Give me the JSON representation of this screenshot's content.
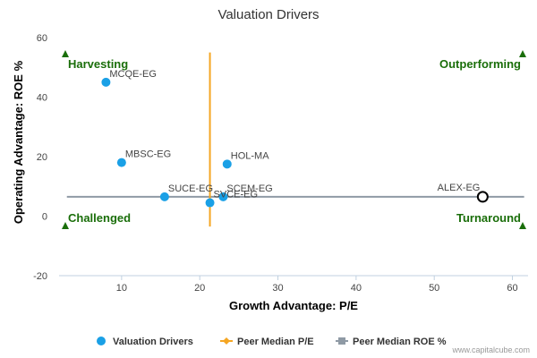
{
  "chart_data": {
    "type": "scatter",
    "title": "Valuation Drivers",
    "xlabel": "Growth Advantage: P/E",
    "ylabel": "Operating Advantage: ROE %",
    "xlim": [
      2,
      62
    ],
    "ylim": [
      -20,
      60
    ],
    "xticks": [
      10,
      20,
      30,
      40,
      50,
      60
    ],
    "yticks": [
      -20,
      0,
      20,
      40,
      60
    ],
    "grid": false,
    "legend_position": "bottom",
    "series": [
      {
        "name": "Valuation Drivers",
        "color": "#1aa0e6",
        "points": [
          {
            "label": "MCQE-EG",
            "x": 8,
            "y": 45
          },
          {
            "label": "MBSC-EG",
            "x": 10,
            "y": 18
          },
          {
            "label": "HOL-MA",
            "x": 23.5,
            "y": 17.5
          },
          {
            "label": "SUCE-EG",
            "x": 15.5,
            "y": 6.5
          },
          {
            "label": "SCEM-EG",
            "x": 23,
            "y": 6.5
          },
          {
            "label": "SVCE-EG",
            "x": 21.3,
            "y": 4.5
          }
        ]
      },
      {
        "name": "ALEX-EG",
        "color": "#000000",
        "marker": "hollow-circle",
        "points": [
          {
            "label": "ALEX-EG",
            "x": 56.2,
            "y": 6.5
          }
        ]
      }
    ],
    "reference_lines": {
      "peer_median_pe": {
        "name": "Peer Median P/E",
        "x": 21.3,
        "y_range": [
          -3.5,
          55
        ],
        "color": "#f5a623"
      },
      "peer_median_roe": {
        "name": "Peer Median ROE %",
        "y": 6.5,
        "x_range": [
          3,
          61.5
        ],
        "color": "#8f9aa5"
      }
    },
    "quadrants": [
      {
        "label": "Harvesting",
        "position": "top-left"
      },
      {
        "label": "Outperforming",
        "position": "top-right"
      },
      {
        "label": "Challenged",
        "position": "bottom-left"
      },
      {
        "label": "Turnaround",
        "position": "bottom-right"
      }
    ],
    "quadrant_color": "#1a6e0a",
    "legend": [
      {
        "label": "Valuation Drivers",
        "color": "#1aa0e6",
        "marker": "circle"
      },
      {
        "label": "Peer Median P/E",
        "color": "#f5a623",
        "marker": "diamond-line"
      },
      {
        "label": "Peer Median ROE %",
        "color": "#8f9aa5",
        "marker": "square-line"
      }
    ],
    "credit": "www.capitalcube.com"
  }
}
